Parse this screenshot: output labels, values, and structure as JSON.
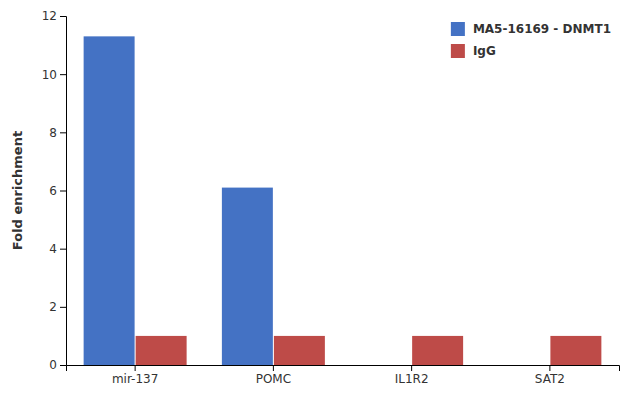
{
  "chart_data": {
    "type": "bar",
    "ylabel": "Fold enrichment",
    "categories": [
      "mir-137",
      "POMC",
      "IL1R2",
      "SAT2"
    ],
    "series": [
      {
        "name": "MA5-16169 - DNMT1",
        "color": "#4472C4",
        "values": [
          11.3,
          6.1,
          0.0,
          0.0
        ]
      },
      {
        "name": "IgG",
        "color": "#BE4B48",
        "values": [
          1.0,
          1.0,
          1.0,
          1.0
        ]
      }
    ],
    "ylim": [
      0,
      12
    ],
    "yticks": [
      0,
      2,
      4,
      6,
      8,
      10,
      12
    ],
    "grid": false,
    "legend": "upper-right"
  }
}
